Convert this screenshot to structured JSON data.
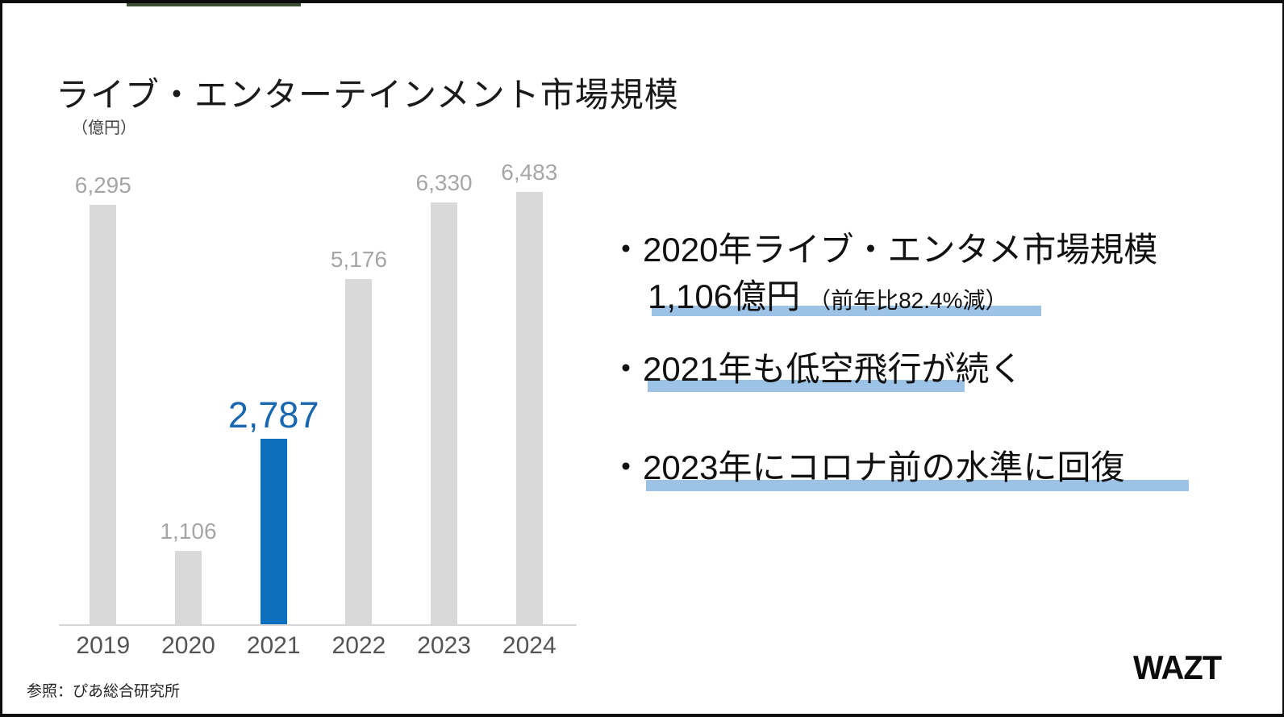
{
  "slide": {
    "title": "ライブ・エンターテインメント市場規模",
    "unit_label": "（億円）",
    "source": "参照：ぴあ総合研究所",
    "logo": "WAZT",
    "bullet_marker": "・"
  },
  "chart_data": {
    "type": "bar",
    "title": "ライブ・エンターテインメント市場規模",
    "ylabel": "（億円）",
    "xlabel": "",
    "categories": [
      "2019",
      "2020",
      "2021",
      "2022",
      "2023",
      "2024"
    ],
    "values": [
      6295,
      1106,
      2787,
      5176,
      6330,
      6483
    ],
    "labels": [
      "6,295",
      "1,106",
      "2,787",
      "5,176",
      "6,330",
      "6,483"
    ],
    "highlight_index": 2,
    "ylim": [
      0,
      6700
    ],
    "grid": false,
    "legend": "none"
  },
  "bullets": [
    {
      "line1": "2020年ライブ・エンタメ市場規模",
      "line2_main": "1,106億円",
      "line2_note": "（前年比82.4%減）"
    },
    {
      "text": "2021年も低空飛行が続く"
    },
    {
      "text": "2023年にコロナ前の水準に回復"
    }
  ],
  "colors": {
    "bar": "#d9d9d9",
    "bar_highlight": "#0d70bf",
    "value_label": "#a6a6a6",
    "value_label_highlight": "#1a67b1",
    "axis": "#d6d6d6",
    "tick_label": "#545454",
    "highlight_underline": "#9cc2e5"
  }
}
